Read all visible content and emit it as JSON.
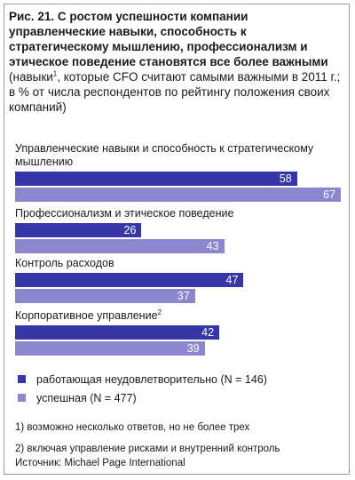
{
  "title": {
    "bold": "Рис. 21. С ростом успешности компании управленческие навыки, способность к стратегическому мышлению, профессионализм и этическое поведение становятся все более важными",
    "sub_before": "(навыки",
    "sub_sup": "1",
    "sub_after": ", которые CFO считают самыми важными в 2011 г.; в % от числа респондентов по рейтингу положения своих компаний)"
  },
  "chart_data": {
    "type": "bar",
    "orientation": "horizontal",
    "categories": [
      "Управленческие навыки и способность к стратегическому мышлению",
      "Профессионализм и этическое поведение",
      "Контроль расходов",
      "Корпоративное управление"
    ],
    "category_sups": [
      "",
      "",
      "",
      "2"
    ],
    "series": [
      {
        "name": "работающая неудовлетворительно (N = 146)",
        "values": [
          58,
          26,
          47,
          42
        ],
        "color": "#3636a6"
      },
      {
        "name": "успешная (N = 477)",
        "values": [
          67,
          43,
          37,
          39
        ],
        "color": "#8b87cf"
      }
    ],
    "legend_position": "bottom",
    "grid": false
  },
  "notes": [
    "1)  возможно несколько ответов, но не более трех",
    "2)  включая управление рисками и внутренний контроль"
  ],
  "source": "Источник: Michael Page International"
}
